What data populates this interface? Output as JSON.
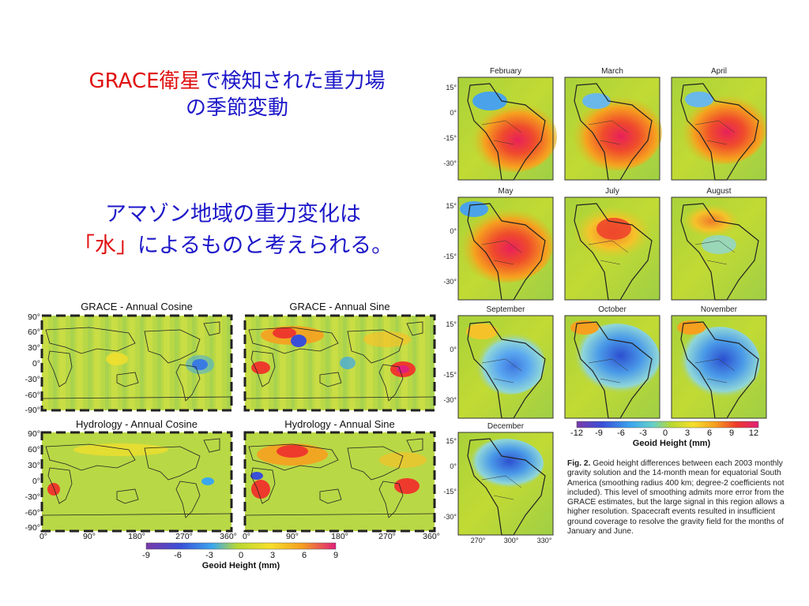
{
  "slide": {
    "title_line1_red": "GRACE衛星",
    "title_line1_blue": "で検知された重力場",
    "title_line2": "の季節変動",
    "subtitle_line1": "アマゾン地域の重力変化は",
    "subtitle_line2_red": "「水」",
    "subtitle_line2_blue": "によるものと考えられる。"
  },
  "monthly_figure": {
    "panels": [
      "February",
      "March",
      "April",
      "May",
      "July",
      "August",
      "September",
      "October",
      "November",
      "December"
    ],
    "lat_ticks": [
      "15°",
      "0°",
      "-15°",
      "-30°"
    ],
    "lon_ticks": [
      "270°",
      "300°",
      "330°"
    ],
    "colorbar_ticks": [
      "-12",
      "-9",
      "-6",
      "-3",
      "0",
      "3",
      "6",
      "9",
      "12"
    ],
    "colorbar_label": "Geoid Height (mm)",
    "caption_label": "Fig. 2.",
    "caption_text": "Geoid height differences between each 2003 monthly gravity solution and the 14-month mean for equatorial South America (smoothing radius 400 km; degree-2 coefficients not included). This level of smoothing admits more error from the GRACE estimates, but the large signal in this region allows a higher resolution. Spacecraft events resulted in insufficient ground coverage to resolve the gravity field for the months of January and June."
  },
  "world_figure": {
    "panels": [
      "GRACE - Annual Cosine",
      "GRACE - Annual Sine",
      "Hydrology - Annual Cosine",
      "Hydrology - Annual Sine"
    ],
    "lat_ticks": [
      "90°",
      "60°",
      "30°",
      "0°",
      "-30°",
      "-60°",
      "-90°"
    ],
    "lon_ticks": [
      "0°",
      "90°",
      "180°",
      "270°",
      "360°"
    ],
    "colorbar_ticks": [
      "-9",
      "-6",
      "-3",
      "0",
      "3",
      "6",
      "9"
    ],
    "colorbar_label": "Geoid Height (mm)"
  }
}
